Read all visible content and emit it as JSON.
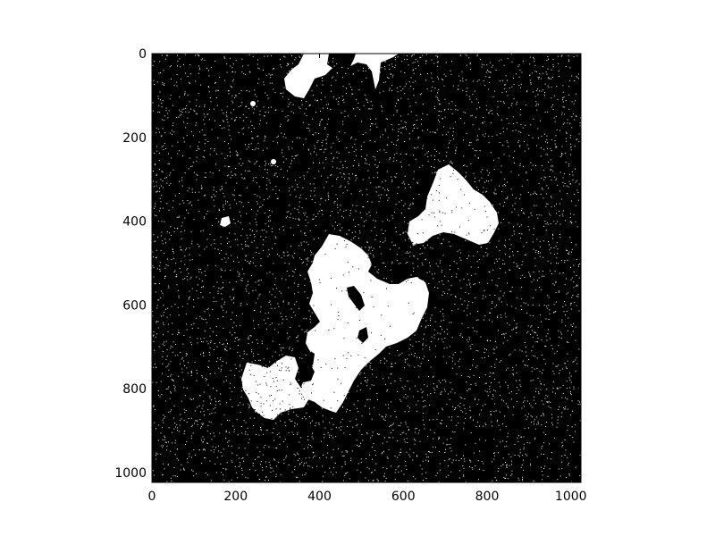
{
  "image": {
    "type": "binary-mask",
    "description_colors": {
      "background": "#000000",
      "foreground": "#ffffff"
    }
  },
  "axes": {
    "x_ticks": [
      "0",
      "200",
      "400",
      "600",
      "800",
      "1000"
    ],
    "y_ticks": [
      "0",
      "200",
      "400",
      "600",
      "800",
      "1000"
    ],
    "x_tick_values": [
      0,
      200,
      400,
      600,
      800,
      1000
    ],
    "y_tick_values": [
      0,
      200,
      400,
      600,
      800,
      1000
    ],
    "xlim": [
      0,
      1024
    ],
    "ylim": [
      1024,
      0
    ]
  },
  "colors": {
    "frame": "#000000",
    "mask_bg": "#000000",
    "mask_fg": "#ffffff",
    "figure_bg": "#ffffff"
  }
}
